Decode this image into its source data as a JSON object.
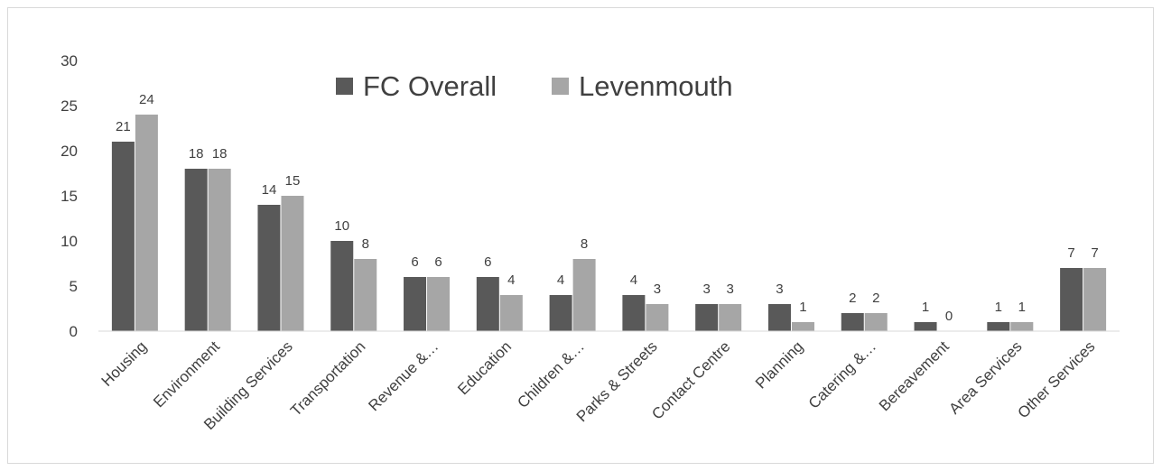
{
  "chart_data": {
    "type": "bar",
    "title": "",
    "xlabel": "",
    "ylabel": "",
    "ylim": [
      0,
      30
    ],
    "yticks": [
      0,
      5,
      10,
      15,
      20,
      25,
      30
    ],
    "grid": false,
    "legend_position": "top-center",
    "categories": [
      "Housing",
      "Environment",
      "Building Services",
      "Transportation",
      "Revenue &…",
      "Education",
      "Children &…",
      "Parks & Streets",
      "Contact Centre",
      "Planning",
      "Catering &…",
      "Bereavement",
      "Area Services",
      "Other Services"
    ],
    "series": [
      {
        "name": "FC Overall",
        "color": "#595959",
        "values": [
          21,
          18,
          14,
          10,
          6,
          6,
          4,
          4,
          3,
          3,
          2,
          1,
          1,
          7
        ]
      },
      {
        "name": "Levenmouth",
        "color": "#a6a6a6",
        "values": [
          24,
          18,
          15,
          8,
          6,
          4,
          8,
          3,
          3,
          1,
          2,
          0,
          1,
          7
        ]
      }
    ]
  }
}
